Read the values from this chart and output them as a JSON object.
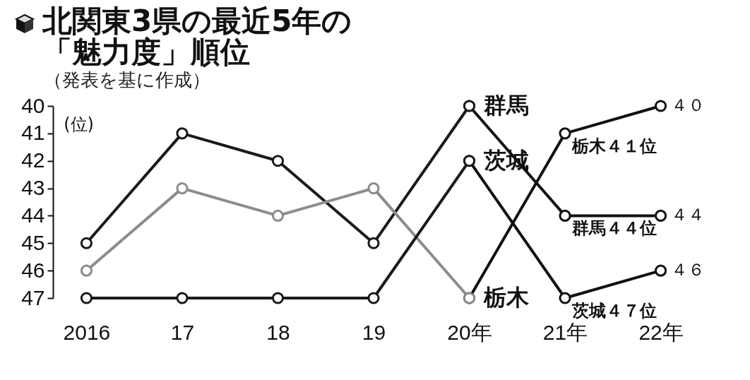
{
  "chart_data": {
    "type": "line",
    "title": "北関東3県の最近5年の「魅力度」順位",
    "subtitle": "（発表を基に作成）",
    "ylabel": "(位)",
    "categories": [
      "2016",
      "17",
      "18",
      "19",
      "20年",
      "21年",
      "22年"
    ],
    "series": [
      {
        "color": "#111111",
        "values": [
          null,
          null,
          null,
          null,
          40,
          44,
          44
        ],
        "value_labels": [
          null,
          null,
          null,
          null,
          null,
          "群馬４４位",
          "４４"
        ]
      },
      {
        "color": "#111111",
        "values": [
          null,
          null,
          null,
          null,
          47,
          41,
          40
        ],
        "value_labels": [
          null,
          null,
          null,
          null,
          null,
          "栃木４１位",
          "４０"
        ]
      },
      {
        "color": "#111111",
        "values": [
          null,
          null,
          null,
          null,
          42,
          47,
          46
        ],
        "value_labels": [
          null,
          null,
          null,
          null,
          null,
          "茨城４７位",
          "４６"
        ]
      },
      {
        "name": "群馬",
        "color": "#1a1a1a",
        "values": [
          45,
          41,
          42,
          45,
          40,
          null,
          null
        ]
      },
      {
        "name": "栃木",
        "color": "#8c8c8c",
        "values": [
          46,
          43,
          44,
          43,
          47,
          null,
          null
        ]
      },
      {
        "name": "茨城",
        "color": "#1a1a1a",
        "values": [
          47,
          47,
          47,
          47,
          42,
          null,
          null
        ]
      }
    ],
    "ylim": [
      47,
      40
    ],
    "yticks": [
      40,
      41,
      42,
      43,
      44,
      45,
      46,
      47
    ],
    "marker": "circle",
    "line_style": "solid"
  }
}
